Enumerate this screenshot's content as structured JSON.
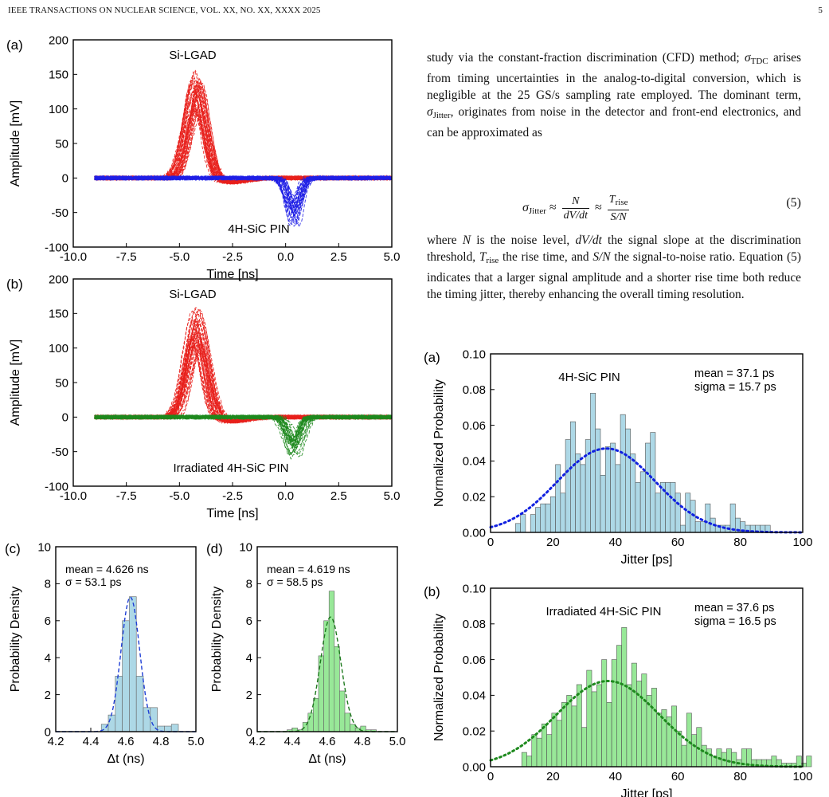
{
  "running_head": {
    "journal": "IEEE TRANSACTIONS ON NUCLEAR SCIENCE, VOL. XX, NO. XX, XXXX 2025",
    "page_number": "5"
  },
  "text": {
    "para1": "study via the constant-fraction discrimination (CFD) method; σ_TDC arises from timing uncertainties in the analog-to-digital conversion, which is negligible at the 25 GS/s sampling rate employed. The dominant term, σ_Jitter, originates from noise in the detector and front-end electronics, and can be approximated as",
    "para1_a": "study via the constant-fraction discrimination (CFD) method;",
    "para1_sym1": "σ",
    "para1_sub1": "TDC",
    "para1_b": " arises from timing uncertainties in the analog-to-digital conversion, which is negligible at the 25 GS/s sampling rate employed. The dominant term, ",
    "para1_sym2": "σ",
    "para1_sub2": "Jitter",
    "para1_c": ", originates from noise in the detector and front-end electronics, and can be approximated as",
    "equation": {
      "lhs": "σ",
      "lhs_sub": "Jitter",
      "approx": "≈",
      "frac1_num": "N",
      "frac1_den": "dV/dt",
      "frac2_num": "T",
      "frac2_num_sub": "rise",
      "frac2_den": "S/N",
      "number": "(5)"
    },
    "para2_a": "where ",
    "para2_N": "N",
    "para2_b": " is the noise level, ",
    "para2_dvdt": "dV/dt",
    "para2_c": " the signal slope at the discrimination threshold, ",
    "para2_T": "T",
    "para2_Tsub": "rise",
    "para2_d": " the rise time, and ",
    "para2_SN": "S/N",
    "para2_e": " the signal-to-noise ratio. Equation (5) indicates that a larger signal amplitude and a shorter rise time both reduce the timing jitter, thereby enhancing the overall timing resolution."
  },
  "chart_data": [
    {
      "panel": "(a)",
      "type": "line",
      "xlabel": "Time [ns]",
      "ylabel": "Amplitude [mV]",
      "xlim": [
        -10,
        5
      ],
      "ylim": [
        -100,
        200
      ],
      "xticks": [
        "-10.0",
        "-7.5",
        "-5.0",
        "-2.5",
        "0.0",
        "2.5",
        "5.0"
      ],
      "yticks": [
        "-100",
        "-50",
        "0",
        "50",
        "100",
        "150",
        "200"
      ],
      "annotations": [
        "Si-LGAD",
        "4H-SiC PIN"
      ],
      "series": [
        {
          "color": "#e8201c",
          "traces": 45,
          "x_range": [
            -9.0,
            5.0
          ],
          "peak_time": -4.2,
          "peak_amp_range": [
            85,
            155
          ],
          "width": 0.42,
          "undershoot": -6
        },
        {
          "color": "#1f1fe6",
          "traces": 30,
          "x_range": [
            -9.0,
            5.0
          ],
          "peak_time": 0.4,
          "peak_amp_range": [
            -70,
            -30
          ],
          "width": 0.28
        }
      ]
    },
    {
      "panel": "(b)",
      "type": "line",
      "xlabel": "Time [ns]",
      "ylabel": "Amplitude [mV]",
      "xlim": [
        -10,
        5
      ],
      "ylim": [
        -100,
        200
      ],
      "xticks": [
        "-10.0",
        "-7.5",
        "-5.0",
        "-2.5",
        "0.0",
        "2.5",
        "5.0"
      ],
      "yticks": [
        "-100",
        "-50",
        "0",
        "50",
        "100",
        "150",
        "200"
      ],
      "annotations": [
        "Si-LGAD",
        "Irradiated 4H-SiC PIN"
      ],
      "series": [
        {
          "color": "#e8201c",
          "traces": 45,
          "x_range": [
            -9.0,
            5.0
          ],
          "peak_time": -4.2,
          "peak_amp_range": [
            90,
            160
          ],
          "width": 0.42,
          "undershoot": -6
        },
        {
          "color": "#1e8a1e",
          "traces": 30,
          "x_range": [
            -9.0,
            5.0
          ],
          "peak_time": 0.4,
          "peak_amp_range": [
            -60,
            -25
          ],
          "width": 0.28
        }
      ]
    },
    {
      "panel": "(c)",
      "type": "bar",
      "xlabel": "Δt (ns)",
      "ylabel": "Probability Density",
      "xlim": [
        4.2,
        5.0
      ],
      "ylim": [
        0,
        10
      ],
      "xticks": [
        "4.2",
        "4.4",
        "4.6",
        "4.8",
        "5.0"
      ],
      "yticks": [
        "0",
        "2",
        "4",
        "6",
        "8",
        "10"
      ],
      "stats": [
        "mean = 4.626 ns",
        "σ = 53.1 ps"
      ],
      "bin_width": 0.04,
      "bin_starts": [
        4.46,
        4.5,
        4.54,
        4.58,
        4.62,
        4.66,
        4.7,
        4.74,
        4.78,
        4.82,
        4.86
      ],
      "values": [
        0.4,
        0.9,
        3.0,
        6.0,
        7.3,
        3.0,
        1.3,
        1.3,
        0.3,
        0.3,
        0.4
      ],
      "fit": {
        "mean": 4.626,
        "sigma": 0.0531,
        "color": "#1f3fd6"
      },
      "bar_color": "#add8e6"
    },
    {
      "panel": "(d)",
      "type": "bar",
      "xlabel": "Δt (ns)",
      "ylabel": "Probability Density",
      "xlim": [
        4.2,
        5.0
      ],
      "ylim": [
        0,
        10
      ],
      "xticks": [
        "4.2",
        "4.4",
        "4.6",
        "4.8",
        "5.0"
      ],
      "yticks": [
        "0",
        "2",
        "4",
        "6",
        "8",
        "10"
      ],
      "stats": [
        "mean = 4.619 ns",
        "σ = 58.5 ps"
      ],
      "bin_width": 0.03,
      "bin_starts": [
        4.37,
        4.4,
        4.43,
        4.46,
        4.49,
        4.52,
        4.55,
        4.58,
        4.61,
        4.64,
        4.67,
        4.7,
        4.73,
        4.76,
        4.79,
        4.82,
        4.85
      ],
      "values": [
        0.1,
        0.2,
        0.1,
        0.5,
        1.0,
        1.8,
        4.1,
        6.0,
        7.6,
        4.6,
        2.2,
        1.0,
        0.4,
        0.2,
        0.3,
        0.1,
        0.1
      ],
      "fit": {
        "mean": 4.619,
        "sigma": 0.0585,
        "color": "#1e7a1e"
      },
      "bar_color": "#98e898"
    },
    {
      "panel": "(a)",
      "type": "bar",
      "xlabel": "Jitter [ps]",
      "ylabel": "Normalized Probability",
      "xlim": [
        0,
        100
      ],
      "ylim": [
        0,
        0.1
      ],
      "xticks": [
        "0",
        "20",
        "40",
        "60",
        "80",
        "100"
      ],
      "yticks": [
        "0.00",
        "0.02",
        "0.04",
        "0.06",
        "0.08",
        "0.10"
      ],
      "annotations": [
        "4H-SiC PIN"
      ],
      "stats": [
        "mean = 37.1 ps",
        "sigma = 15.7 ps"
      ],
      "bin_start": 8,
      "bin_width": 1.6,
      "values": [
        0.005,
        0.01,
        0.0,
        0.01,
        0.014,
        0.016,
        0.016,
        0.02,
        0.038,
        0.022,
        0.052,
        0.062,
        0.044,
        0.038,
        0.052,
        0.078,
        0.058,
        0.032,
        0.048,
        0.05,
        0.038,
        0.066,
        0.058,
        0.044,
        0.028,
        0.034,
        0.05,
        0.056,
        0.022,
        0.028,
        0.028,
        0.028,
        0.022,
        0.004,
        0.022,
        0.018,
        0.006,
        0.006,
        0.016,
        0.008,
        0.004,
        0.004,
        0.004,
        0.016,
        0.008,
        0.006,
        0.004,
        0.004,
        0.004,
        0.004,
        0.004
      ],
      "fit": {
        "mean": 37.1,
        "sigma": 15.7,
        "amplitude": 0.047,
        "color": "#1020e0"
      },
      "bar_color": "#add8e6"
    },
    {
      "panel": "(b)",
      "type": "bar",
      "xlabel": "Jitter [ps]",
      "ylabel": "Normalized Probability",
      "xlim": [
        0,
        100
      ],
      "ylim": [
        0,
        0.1
      ],
      "xticks": [
        "0",
        "20",
        "40",
        "60",
        "80",
        "100"
      ],
      "yticks": [
        "0.00",
        "0.02",
        "0.04",
        "0.06",
        "0.08",
        "0.10"
      ],
      "annotations": [
        "Irradiated 4H-SiC PIN"
      ],
      "stats": [
        "mean = 37.6 ps",
        "sigma = 16.5 ps"
      ],
      "bin_start": 10,
      "bin_width": 1.6,
      "values": [
        0.008,
        0.006,
        0.018,
        0.016,
        0.024,
        0.018,
        0.03,
        0.026,
        0.036,
        0.04,
        0.034,
        0.046,
        0.022,
        0.054,
        0.042,
        0.046,
        0.06,
        0.036,
        0.06,
        0.068,
        0.078,
        0.046,
        0.058,
        0.048,
        0.052,
        0.04,
        0.044,
        0.03,
        0.032,
        0.028,
        0.034,
        0.02,
        0.012,
        0.03,
        0.018,
        0.022,
        0.012,
        0.01,
        0.006,
        0.01,
        0.008,
        0.01,
        0.008,
        0.004,
        0.01,
        0.01,
        0.004,
        0.004,
        0.004,
        0.004,
        0.006,
        0.004,
        0.002,
        0.002,
        0.002,
        0.006,
        0.002,
        0.006
      ],
      "fit": {
        "mean": 37.6,
        "sigma": 16.5,
        "amplitude": 0.048,
        "color": "#1e8a1e"
      },
      "bar_color": "#98e898"
    }
  ]
}
